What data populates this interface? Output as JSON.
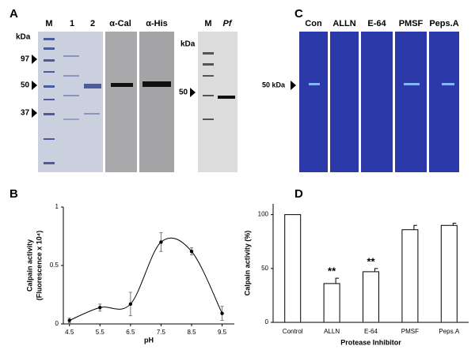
{
  "panel_labels": [
    "A",
    "B",
    "C",
    "D"
  ],
  "gel_a": {
    "lanes": [
      "M",
      "1",
      "2",
      "α-Cal",
      "α-His"
    ],
    "unit": "kDa",
    "markers": [
      "97",
      "50",
      "37"
    ]
  },
  "gel_a2": {
    "lanes": [
      "M",
      "Pf"
    ],
    "unit": "kDa",
    "markers": [
      "50"
    ]
  },
  "gel_c": {
    "lanes": [
      "Con",
      "ALLN",
      "E-64",
      "PMSF",
      "Peps.A"
    ],
    "marker": "50 kDa"
  },
  "chart_data": [
    {
      "type": "line",
      "ylabel": [
        "Calpain activity",
        "(Fluorescence x 10⁴)"
      ],
      "xlabel": "pH",
      "x": [
        4.5,
        5.5,
        6.5,
        7.5,
        8.5,
        9.5
      ],
      "values": [
        0.03,
        0.14,
        0.17,
        0.7,
        0.62,
        0.09
      ],
      "errors": [
        0.02,
        0.03,
        0.1,
        0.08,
        0.03,
        0.06
      ],
      "color": "#000000",
      "xlim": [
        4.3,
        9.9
      ],
      "xticks": [
        4.5,
        5.5,
        6.5,
        7.5,
        8.5,
        9.5
      ],
      "ylim": [
        0,
        1
      ],
      "yticks": [
        0,
        0.5,
        1
      ]
    },
    {
      "type": "bar",
      "ylabel": "Calpain activity (%)",
      "xlabel": "Protease Inhibitor",
      "categories": [
        "Control",
        "ALLN",
        "E-64",
        "PMSF",
        "Peps.A"
      ],
      "values": [
        100,
        36,
        47,
        86,
        90
      ],
      "errors": [
        0,
        5,
        3,
        4,
        2
      ],
      "annotations": [
        null,
        "**",
        "**",
        null,
        null
      ],
      "color": "#ffffff",
      "ylim": [
        0,
        110
      ],
      "yticks": [
        0,
        50,
        100
      ]
    }
  ]
}
